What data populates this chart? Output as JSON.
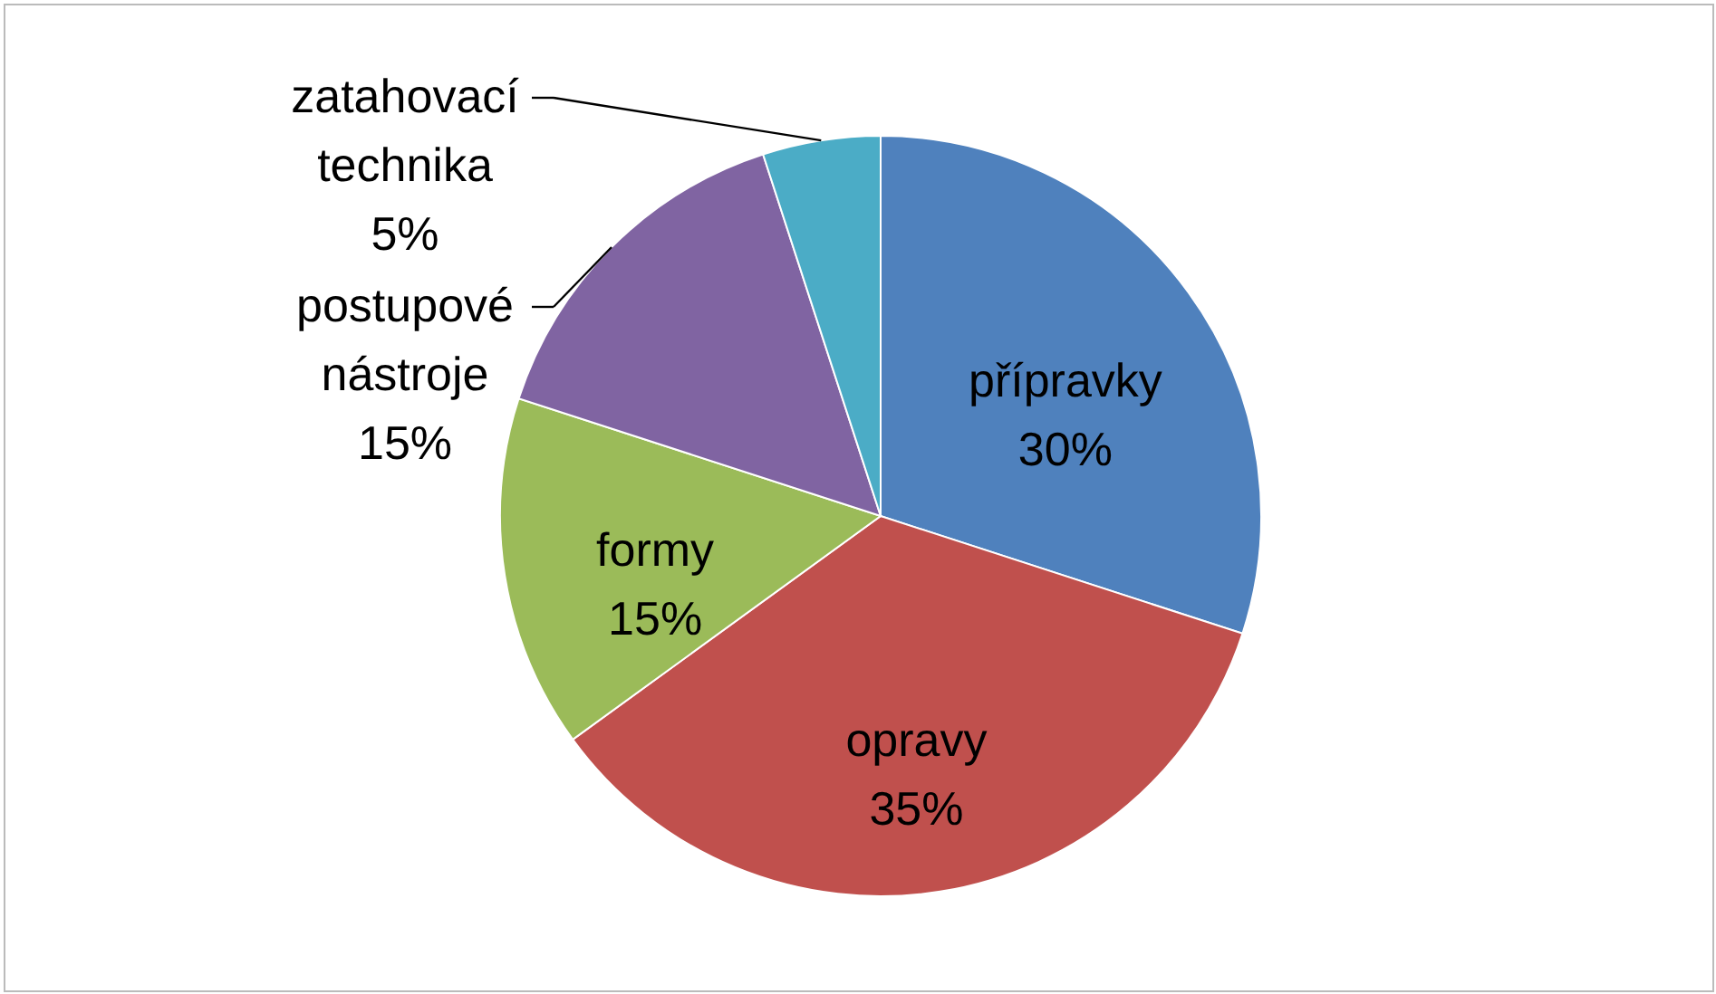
{
  "chart_data": {
    "type": "pie",
    "categories": [
      "přípravky",
      "opravy",
      "formy",
      "postupové nástroje",
      "zatahovací technika"
    ],
    "values": [
      30,
      35,
      15,
      15,
      5
    ],
    "colors": [
      "#4f81bd",
      "#c0504d",
      "#9bbb59",
      "#8064a2",
      "#4bacc6"
    ],
    "value_labels": [
      "30%",
      "35%",
      "15%",
      "15%",
      "5%"
    ]
  }
}
